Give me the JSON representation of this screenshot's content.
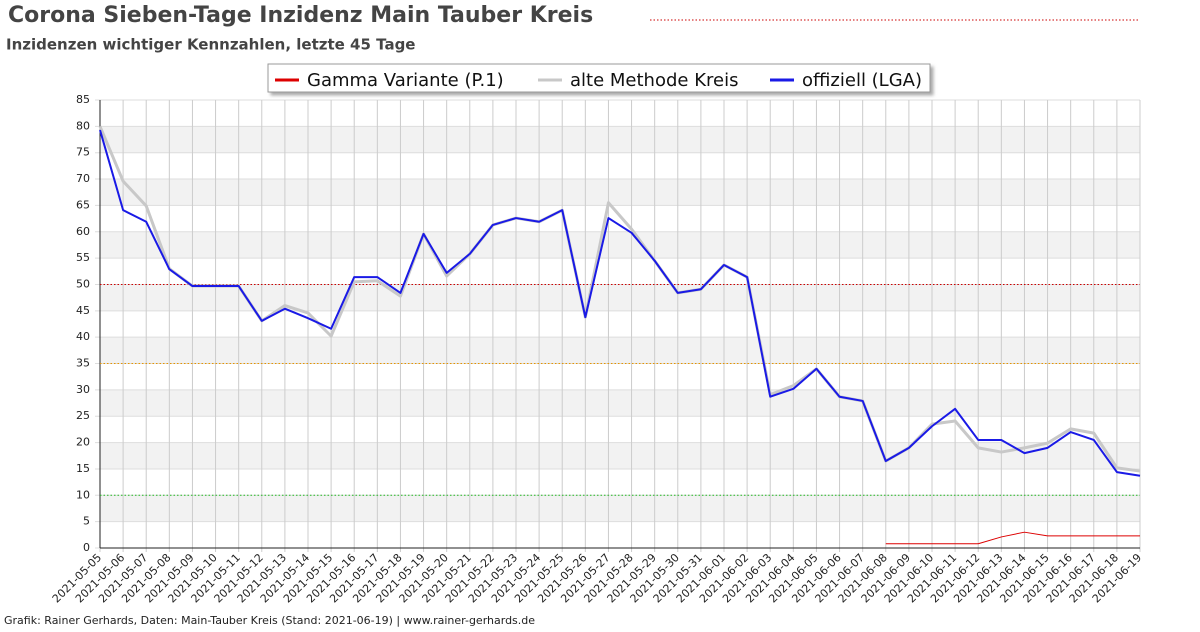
{
  "chart_data": {
    "type": "line",
    "title": "Corona Sieben-Tage Inzidenz Main Tauber Kreis",
    "subtitle": "Inzidenzen wichtiger Kennzahlen, letzte 45 Tage",
    "footer": "Grafik: Rainer Gerhards, Daten: Main-Tauber Kreis (Stand: 2021-06-19) | www.rainer-gerhards.de",
    "x": [
      "2021-05-05",
      "2021-05-06",
      "2021-05-07",
      "2021-05-08",
      "2021-05-09",
      "2021-05-10",
      "2021-05-11",
      "2021-05-12",
      "2021-05-13",
      "2021-05-14",
      "2021-05-15",
      "2021-05-16",
      "2021-05-17",
      "2021-05-18",
      "2021-05-19",
      "2021-05-20",
      "2021-05-21",
      "2021-05-22",
      "2021-05-23",
      "2021-05-24",
      "2021-05-25",
      "2021-05-26",
      "2021-05-27",
      "2021-05-28",
      "2021-05-29",
      "2021-05-30",
      "2021-05-31",
      "2021-06-01",
      "2021-06-02",
      "2021-06-03",
      "2021-06-04",
      "2021-06-05",
      "2021-06-06",
      "2021-06-07",
      "2021-06-08",
      "2021-06-09",
      "2021-06-10",
      "2021-06-11",
      "2021-06-12",
      "2021-06-13",
      "2021-06-14",
      "2021-06-15",
      "2021-06-16",
      "2021-06-17",
      "2021-06-18",
      "2021-06-19"
    ],
    "series": [
      {
        "name": "Gamma Variante (P.1)",
        "color": "#dd0000",
        "width": 1,
        "values": [
          null,
          null,
          null,
          null,
          null,
          null,
          null,
          null,
          null,
          null,
          null,
          null,
          null,
          null,
          null,
          null,
          null,
          null,
          null,
          null,
          null,
          null,
          null,
          null,
          null,
          null,
          null,
          null,
          null,
          null,
          null,
          null,
          null,
          null,
          0.8,
          0.8,
          0.8,
          0.8,
          0.8,
          2.1,
          3.0,
          2.3,
          2.3,
          2.3,
          2.3,
          2.3
        ]
      },
      {
        "name": "alte Methode Kreis",
        "color": "#c8c8c8",
        "width": 3,
        "values": [
          80,
          69.6,
          64.9,
          53,
          49.7,
          49.7,
          49.7,
          43.1,
          46.0,
          44.6,
          40.2,
          50.5,
          50.7,
          47.8,
          59.6,
          51.6,
          55.8,
          61.3,
          62.6,
          61.9,
          64.1,
          43.8,
          65.5,
          60.5,
          54.5,
          48.4,
          49.1,
          53.7,
          51.4,
          29.1,
          30.8,
          34.0,
          28.7,
          27.9,
          16.5,
          19.0,
          23.5,
          24.1,
          19.0,
          18.2,
          19.0,
          19.9,
          22.6,
          21.8,
          15.2,
          14.6
        ]
      },
      {
        "name": "offiziell (LGA)",
        "color": "#1a1ae6",
        "width": 2,
        "values": [
          79.3,
          64.1,
          61.9,
          52.9,
          49.7,
          49.7,
          49.7,
          43.1,
          45.4,
          43.6,
          41.6,
          51.4,
          51.4,
          48.4,
          59.6,
          52.2,
          55.8,
          61.3,
          62.6,
          61.9,
          64.1,
          43.8,
          62.6,
          59.8,
          54.5,
          48.4,
          49.1,
          53.7,
          51.4,
          28.7,
          30.2,
          34.0,
          28.7,
          27.9,
          16.5,
          19.0,
          23.1,
          26.4,
          20.5,
          20.5,
          18.0,
          19.0,
          22.0,
          20.5,
          14.4,
          13.7
        ]
      }
    ],
    "reference_lines": [
      {
        "value": 50,
        "color": "#cc0000"
      },
      {
        "value": 35,
        "color": "#e69500"
      },
      {
        "value": 10,
        "color": "#22bb22"
      }
    ],
    "ylim": [
      0,
      85
    ],
    "yticks": [
      0,
      5,
      10,
      15,
      20,
      25,
      30,
      35,
      40,
      45,
      50,
      55,
      60,
      65,
      70,
      75,
      80,
      85
    ],
    "grid": true
  }
}
